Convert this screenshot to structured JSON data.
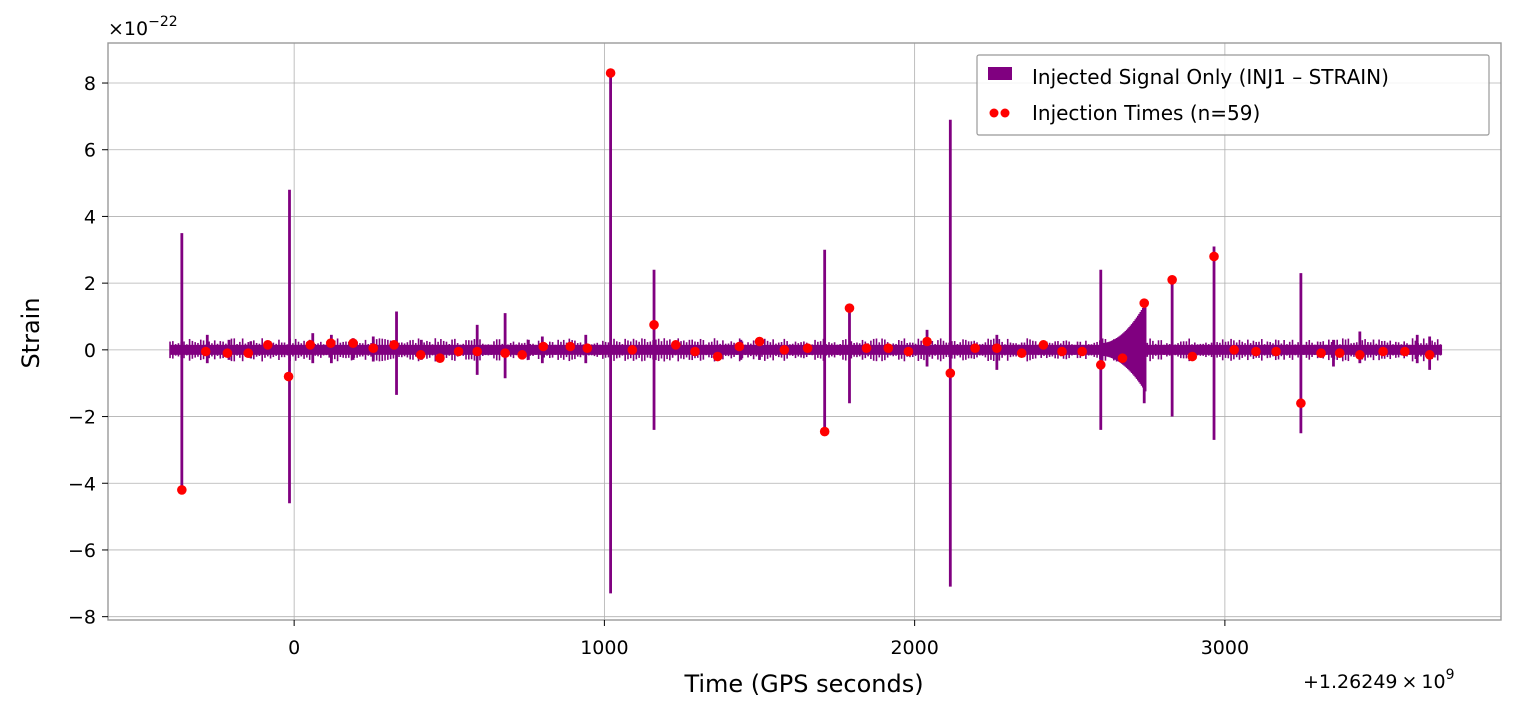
{
  "chart_data": {
    "type": "line",
    "title": "",
    "xlabel": "Time (GPS seconds)",
    "ylabel": "Strain",
    "x_offset_label": "+1.26249",
    "x_offset_exp": "9",
    "y_scale_label": "10",
    "y_scale_exp": "−22",
    "xlim": [
      -600,
      3890
    ],
    "ylim": [
      -8.1,
      9.2
    ],
    "xticks": [
      0,
      1000,
      2000,
      3000
    ],
    "xtick_labels": [
      "0",
      "1000",
      "2000",
      "3000"
    ],
    "yticks": [
      -8,
      -6,
      -4,
      -2,
      0,
      2,
      4,
      6,
      8
    ],
    "ytick_labels": [
      "−8",
      "−6",
      "−4",
      "−2",
      "0",
      "2",
      "4",
      "6",
      "8"
    ],
    "grid": true,
    "legend_position": "top-right",
    "signal_range": [
      -400,
      3700
    ],
    "noise_band": 0.15,
    "series": [
      {
        "name": "Injected Signal Only (INJ1 – STRAIN)",
        "color": "#800080",
        "spikes": [
          {
            "x": -362,
            "max": 3.5,
            "min": -4.2
          },
          {
            "x": -280,
            "max": 0.45,
            "min": -0.4
          },
          {
            "x": -210,
            "max": 0.3,
            "min": -0.3
          },
          {
            "x": -140,
            "max": 0.25,
            "min": -0.25
          },
          {
            "x": -15,
            "max": 4.8,
            "min": -4.6
          },
          {
            "x": 60,
            "max": 0.5,
            "min": -0.4
          },
          {
            "x": 120,
            "max": 0.45,
            "min": -0.4
          },
          {
            "x": 190,
            "max": 0.35,
            "min": -0.3
          },
          {
            "x": 255,
            "max": 0.4,
            "min": -0.35
          },
          {
            "x": 330,
            "max": 1.15,
            "min": -1.35
          },
          {
            "x": 410,
            "max": 0.3,
            "min": -0.3
          },
          {
            "x": 590,
            "max": 0.75,
            "min": -0.75
          },
          {
            "x": 680,
            "max": 1.1,
            "min": -0.85
          },
          {
            "x": 755,
            "max": 0.3,
            "min": -0.3
          },
          {
            "x": 800,
            "max": 0.4,
            "min": -0.4
          },
          {
            "x": 940,
            "max": 0.45,
            "min": -0.4
          },
          {
            "x": 1020,
            "max": 8.25,
            "min": -7.3
          },
          {
            "x": 1160,
            "max": 2.4,
            "min": -2.4
          },
          {
            "x": 1440,
            "max": 0.3,
            "min": -0.3
          },
          {
            "x": 1500,
            "max": 0.35,
            "min": -0.3
          },
          {
            "x": 1710,
            "max": 3.0,
            "min": -2.4
          },
          {
            "x": 1790,
            "max": 1.2,
            "min": -1.6
          },
          {
            "x": 2040,
            "max": 0.6,
            "min": -0.5
          },
          {
            "x": 2115,
            "max": 6.9,
            "min": -7.1
          },
          {
            "x": 2265,
            "max": 0.45,
            "min": -0.6
          },
          {
            "x": 2600,
            "max": 2.4,
            "min": -2.4
          },
          {
            "x": 2740,
            "max": 1.45,
            "min": -1.6
          },
          {
            "x": 2830,
            "max": 2.0,
            "min": -2.0
          },
          {
            "x": 2965,
            "max": 3.1,
            "min": -2.7
          },
          {
            "x": 3245,
            "max": 2.3,
            "min": -2.5
          },
          {
            "x": 3350,
            "max": 0.3,
            "min": -0.5
          },
          {
            "x": 3435,
            "max": 0.55,
            "min": -0.4
          },
          {
            "x": 3620,
            "max": 0.45,
            "min": -0.4
          },
          {
            "x": 3660,
            "max": 0.4,
            "min": -0.6
          }
        ]
      },
      {
        "name": "Injection Times (n=59)",
        "color": "#ff0000",
        "x": [
          -362,
          -285,
          -215,
          -148,
          -85,
          -18,
          52,
          118,
          190,
          255,
          322,
          408,
          470,
          530,
          590,
          680,
          735,
          803,
          890,
          945,
          1020,
          1090,
          1160,
          1230,
          1292,
          1365,
          1435,
          1500,
          1580,
          1655,
          1710,
          1790,
          1845,
          1915,
          1980,
          2040,
          2115,
          2195,
          2265,
          2345,
          2415,
          2475,
          2540,
          2600,
          2670,
          2740,
          2830,
          2895,
          2965,
          3030,
          3100,
          3165,
          3245,
          3310,
          3370,
          3435,
          3510,
          3580,
          3660
        ],
        "y": [
          -4.2,
          -0.05,
          -0.1,
          -0.1,
          0.15,
          -0.8,
          0.15,
          0.2,
          0.2,
          0.05,
          0.15,
          -0.15,
          -0.25,
          -0.05,
          -0.05,
          -0.1,
          -0.15,
          0.1,
          0.1,
          0.05,
          8.3,
          0.0,
          0.75,
          0.15,
          -0.05,
          -0.2,
          0.1,
          0.25,
          0.0,
          0.05,
          -2.45,
          1.25,
          0.05,
          0.05,
          -0.05,
          0.25,
          -0.7,
          0.05,
          0.05,
          -0.1,
          0.15,
          -0.05,
          -0.05,
          -0.45,
          -0.25,
          1.4,
          2.1,
          -0.2,
          2.8,
          0.0,
          -0.05,
          -0.05,
          -1.6,
          -0.1,
          -0.1,
          -0.15,
          -0.05,
          -0.05,
          -0.15
        ]
      }
    ]
  }
}
